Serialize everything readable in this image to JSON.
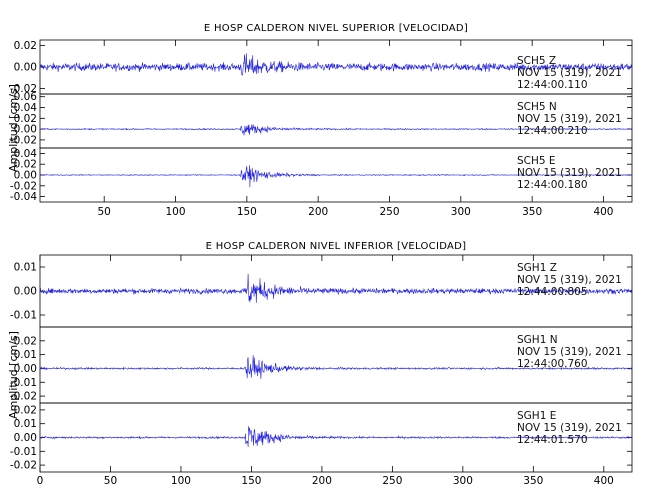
{
  "chart_data": [
    {
      "type": "line",
      "title": "E HOSP CALDERON NIVEL SUPERIOR [VELOCIDAD]",
      "ylabel": "Amplitud [cm/s]",
      "xlabel": "",
      "xlim": [
        5,
        420
      ],
      "xticks": [
        "50",
        "100",
        "150",
        "200",
        "250",
        "300",
        "350",
        "400"
      ],
      "grid": false,
      "legend": "none",
      "line_color": "#1f1fe0",
      "panels": [
        {
          "station": "SCH5",
          "component": "Z",
          "date": "NOV 15 (319), 2021",
          "time": "12:44:00.110",
          "ylim": [
            -0.025,
            0.025
          ],
          "yticks": [
            "0.02",
            "0.00",
            "-0.02"
          ],
          "noise_amp": 0.0065,
          "event_amp": 0.022
        },
        {
          "station": "SCH5",
          "component": "N",
          "date": "NOV 15 (319), 2021",
          "time": "12:44:00.210",
          "ylim": [
            -0.035,
            0.065
          ],
          "yticks": [
            "0.06",
            "0.04",
            "0.02",
            "0.00",
            "-0.02"
          ],
          "noise_amp": 0.002,
          "event_amp": 0.03
        },
        {
          "station": "SCH5",
          "component": "E",
          "date": "NOV 15 (319), 2021",
          "time": "12:44:00.180",
          "ylim": [
            -0.05,
            0.05
          ],
          "yticks": [
            "0.04",
            "0.02",
            "0.00",
            "-0.02",
            "-0.04"
          ],
          "noise_amp": 0.0015,
          "event_amp": 0.045
        }
      ],
      "event_start": 145
    },
    {
      "type": "line",
      "title": "E HOSP CALDERON NIVEL INFERIOR [VELOCIDAD]",
      "ylabel": "Amplitud [cm/s]",
      "xlabel": "",
      "xlim": [
        0,
        420
      ],
      "xticks": [
        "0",
        "50",
        "100",
        "150",
        "200",
        "250",
        "300",
        "350",
        "400"
      ],
      "grid": false,
      "legend": "none",
      "line_color": "#1f1fe0",
      "panels": [
        {
          "station": "SGH1",
          "component": "Z",
          "date": "NOV 15 (319), 2021",
          "time": "12:44:00.805",
          "ylim": [
            -0.015,
            0.015
          ],
          "yticks": [
            "0.01",
            "0.00",
            "-0.01"
          ],
          "noise_amp": 0.002,
          "event_amp": 0.014
        },
        {
          "station": "SGH1",
          "component": "N",
          "date": "NOV 15 (319), 2021",
          "time": "12:44:00.760",
          "ylim": [
            -0.025,
            0.03
          ],
          "yticks": [
            "0.02",
            "0.01",
            "0.00",
            "-0.01",
            "-0.02"
          ],
          "noise_amp": 0.0012,
          "event_amp": 0.022
        },
        {
          "station": "SGH1",
          "component": "E",
          "date": "NOV 15 (319), 2021",
          "time": "12:44:01.570",
          "ylim": [
            -0.025,
            0.025
          ],
          "yticks": [
            "0.02",
            "0.01",
            "0.00",
            "-0.01",
            "-0.02"
          ],
          "noise_amp": 0.0012,
          "event_amp": 0.024
        }
      ],
      "event_start": 145
    }
  ]
}
